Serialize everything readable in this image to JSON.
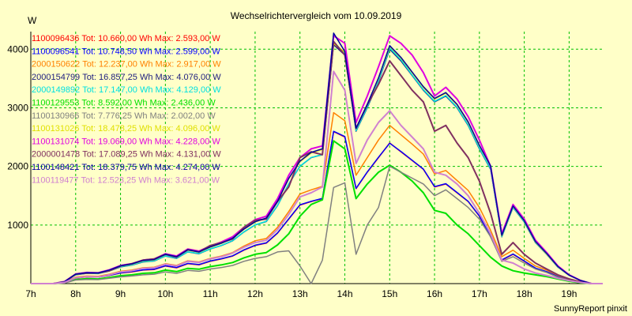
{
  "chart_data": {
    "type": "line",
    "title": "Wechselrichtervergleich vom 10.09.2019",
    "ylabel": "W",
    "footer": "SunnyReport pinxit",
    "ylim": [
      0,
      4300
    ],
    "yticks": [
      1000,
      2000,
      3000,
      4000
    ],
    "xlim": [
      7,
      19.75
    ],
    "xticks": [
      7,
      8,
      9,
      10,
      11,
      12,
      13,
      14,
      15,
      16,
      17,
      18,
      19
    ],
    "xtick_labels": [
      "7h",
      "8h",
      "9h",
      "10h",
      "11h",
      "12h",
      "13h",
      "14h",
      "15h",
      "16h",
      "17h",
      "18h",
      "19h"
    ],
    "grid": true,
    "legend_position": "top-left",
    "x": [
      7.0,
      7.25,
      7.5,
      7.75,
      8.0,
      8.25,
      8.5,
      8.75,
      9.0,
      9.25,
      9.5,
      9.75,
      10.0,
      10.25,
      10.5,
      10.75,
      11.0,
      11.25,
      11.5,
      11.75,
      12.0,
      12.25,
      12.5,
      12.75,
      13.0,
      13.25,
      13.5,
      13.75,
      14.0,
      14.25,
      14.5,
      14.75,
      15.0,
      15.25,
      15.5,
      15.75,
      16.0,
      16.25,
      16.5,
      16.75,
      17.0,
      17.25,
      17.5,
      17.75,
      18.0,
      18.25,
      18.5,
      18.75,
      19.0,
      19.25,
      19.5,
      19.75
    ],
    "series": [
      {
        "name": "1100096436",
        "tot": "Tot: 10.660,00 Wh",
        "max": "Max: 2.593,00 W",
        "color": "#ff0000",
        "width": 1.5,
        "values": [
          0,
          0,
          0,
          20,
          95,
          115,
          110,
          140,
          180,
          200,
          230,
          240,
          300,
          270,
          340,
          320,
          380,
          420,
          470,
          570,
          650,
          690,
          860,
          1100,
          1340,
          1400,
          1450,
          2593,
          2500,
          1620,
          1900,
          2150,
          2400,
          2250,
          2100,
          1950,
          1650,
          1700,
          1550,
          1400,
          1150,
          800,
          400,
          500,
          380,
          260,
          200,
          120,
          70,
          30,
          0,
          0
        ]
      },
      {
        "name": "1100096541",
        "tot": "Tot: 10.748,50 Wh",
        "max": "Max: 2.599,00 W",
        "color": "#0000ff",
        "width": 1.5,
        "values": [
          0,
          0,
          0,
          20,
          100,
          118,
          112,
          142,
          182,
          205,
          235,
          245,
          305,
          275,
          345,
          325,
          385,
          425,
          475,
          575,
          655,
          695,
          865,
          1105,
          1345,
          1405,
          1455,
          2599,
          2510,
          1625,
          1905,
          2155,
          2395,
          2255,
          2105,
          1955,
          1655,
          1705,
          1555,
          1405,
          1155,
          805,
          405,
          505,
          385,
          265,
          205,
          125,
          75,
          30,
          0,
          0
        ]
      },
      {
        "name": "2000150622",
        "tot": "Tot: 12.237,00 Wh",
        "max": "Max: 2.917,00 W",
        "color": "#ff8000",
        "width": 1.5,
        "values": [
          0,
          0,
          0,
          25,
          110,
          130,
          125,
          160,
          210,
          230,
          270,
          280,
          340,
          310,
          390,
          370,
          430,
          470,
          530,
          640,
          730,
          770,
          960,
          1230,
          1530,
          1600,
          1660,
          2917,
          2780,
          1850,
          2150,
          2450,
          2700,
          2540,
          2380,
          2210,
          1870,
          1930,
          1760,
          1590,
          1300,
          910,
          460,
          570,
          430,
          300,
          230,
          140,
          80,
          35,
          0,
          0
        ]
      },
      {
        "name": "2000154799",
        "tot": "Tot: 16.857,25 Wh",
        "max": "Max: 4.076,00 W",
        "color": "#202080",
        "width": 1.5,
        "values": [
          0,
          0,
          0,
          30,
          150,
          175,
          170,
          215,
          285,
          315,
          370,
          385,
          470,
          430,
          540,
          510,
          590,
          650,
          730,
          880,
          1000,
          1060,
          1330,
          1700,
          2000,
          2150,
          2200,
          4076,
          3900,
          2600,
          3000,
          3450,
          4000,
          3800,
          3550,
          3300,
          3100,
          3200,
          3000,
          2700,
          2300,
          1950,
          800,
          1300,
          1050,
          700,
          500,
          280,
          140,
          55,
          0,
          0
        ]
      },
      {
        "name": "2000149892",
        "tot": "Tot: 17.147,00 Wh",
        "max": "Max: 4.129,00 W",
        "color": "#00e0e0",
        "width": 1.5,
        "values": [
          0,
          0,
          0,
          30,
          152,
          178,
          172,
          218,
          288,
          318,
          373,
          388,
          473,
          433,
          543,
          513,
          593,
          653,
          733,
          883,
          1003,
          1063,
          1333,
          1703,
          2003,
          2153,
          2203,
          4129,
          3920,
          2610,
          3010,
          3460,
          4020,
          3820,
          3560,
          3310,
          3110,
          3210,
          3010,
          2710,
          2310,
          1960,
          805,
          1305,
          1055,
          705,
          505,
          285,
          145,
          55,
          0,
          0
        ]
      },
      {
        "name": "1100129553",
        "tot": "Tot: 8.592,00 Wh",
        "max": "Max: 2.436,00 W",
        "color": "#00e000",
        "width": 2,
        "values": [
          0,
          0,
          0,
          15,
          70,
          85,
          80,
          105,
          135,
          150,
          175,
          185,
          230,
          205,
          260,
          245,
          290,
          320,
          360,
          440,
          500,
          530,
          660,
          850,
          1150,
          1350,
          1430,
          2436,
          2300,
          1450,
          1700,
          1900,
          2020,
          1900,
          1750,
          1550,
          1250,
          1200,
          1000,
          850,
          650,
          450,
          300,
          220,
          180,
          150,
          120,
          80,
          40,
          15,
          0,
          0
        ]
      },
      {
        "name": "1100130966",
        "tot": "Tot: 7.776,25 Wh",
        "max": "Max: 2.002,00 W",
        "color": "#808080",
        "width": 1.5,
        "values": [
          0,
          0,
          0,
          10,
          60,
          70,
          68,
          90,
          115,
          130,
          150,
          160,
          200,
          175,
          225,
          210,
          250,
          275,
          310,
          380,
          430,
          460,
          540,
          560,
          300,
          0,
          400,
          1640,
          1720,
          500,
          1000,
          1300,
          2002,
          1900,
          1800,
          1700,
          1500,
          1600,
          1450,
          1300,
          1100,
          800,
          380,
          460,
          350,
          250,
          190,
          110,
          60,
          25,
          0,
          0
        ]
      },
      {
        "name": "1100131026",
        "tot": "Tot: 18.478,25 Wh",
        "max": "Max: 4.096,00 W",
        "color": "#e0e000",
        "width": 1.5,
        "values": [
          0,
          0,
          0,
          30,
          160,
          185,
          180,
          230,
          300,
          330,
          390,
          405,
          495,
          455,
          570,
          535,
          620,
          685,
          770,
          925,
          1050,
          1115,
          1400,
          1790,
          2080,
          2230,
          2290,
          4096,
          3950,
          2640,
          3050,
          3500,
          4050,
          3850,
          3600,
          3350,
          3150,
          3250,
          3050,
          2750,
          2350,
          2000,
          820,
          1320,
          1070,
          715,
          510,
          290,
          145,
          55,
          0,
          0
        ]
      },
      {
        "name": "1100131074",
        "tot": "Tot: 19.069,00 Wh",
        "max": "Max: 4.228,00 W",
        "color": "#e000e0",
        "width": 2,
        "values": [
          0,
          0,
          0,
          35,
          165,
          190,
          185,
          235,
          310,
          340,
          400,
          420,
          510,
          470,
          590,
          555,
          640,
          710,
          800,
          960,
          1090,
          1150,
          1450,
          1850,
          2150,
          2300,
          2350,
          4228,
          4100,
          2750,
          3200,
          3700,
          4228,
          4100,
          3900,
          3600,
          3200,
          3350,
          3150,
          2850,
          2450,
          2000,
          850,
          1350,
          1100,
          740,
          530,
          300,
          150,
          55,
          0,
          0
        ]
      },
      {
        "name": "2000001478",
        "tot": "Tot: 17.089,25 Wh",
        "max": "Max: 4.131,00 W",
        "color": "#803060",
        "width": 2,
        "values": [
          0,
          0,
          0,
          30,
          160,
          180,
          180,
          220,
          300,
          340,
          400,
          420,
          500,
          450,
          580,
          540,
          650,
          700,
          760,
          960,
          1080,
          1100,
          1400,
          1650,
          2150,
          2250,
          2200,
          4131,
          3900,
          2650,
          3050,
          3400,
          3800,
          3550,
          3300,
          3100,
          2600,
          2700,
          2400,
          2150,
          1750,
          1200,
          500,
          700,
          500,
          350,
          250,
          150,
          80,
          30,
          0,
          0
        ]
      },
      {
        "name": "1100148421",
        "tot": "Tot: 18.379,75 Wh",
        "max": "Max: 4.274,00 W",
        "color": "#0000a0",
        "width": 1.5,
        "values": [
          0,
          0,
          0,
          32,
          162,
          187,
          182,
          232,
          305,
          335,
          395,
          410,
          500,
          460,
          575,
          540,
          625,
          690,
          775,
          930,
          1055,
          1120,
          1405,
          1795,
          2090,
          2240,
          2300,
          4274,
          3960,
          2650,
          3060,
          3510,
          4060,
          3860,
          3610,
          3360,
          3160,
          3260,
          3060,
          2760,
          2360,
          2010,
          825,
          1325,
          1075,
          720,
          515,
          292,
          146,
          55,
          0,
          0
        ]
      },
      {
        "name": "1100119477",
        "tot": "Tot: 12.523,25 Wh",
        "max": "Max: 3.621,00 W",
        "color": "#d080d0",
        "width": 2,
        "values": [
          0,
          0,
          0,
          20,
          100,
          120,
          115,
          150,
          200,
          220,
          260,
          270,
          330,
          300,
          380,
          360,
          420,
          460,
          520,
          620,
          700,
          740,
          920,
          1180,
          1480,
          1550,
          1650,
          3621,
          3300,
          2050,
          2450,
          2750,
          2950,
          2700,
          2500,
          2300,
          1900,
          1850,
          1700,
          1500,
          1200,
          850,
          400,
          350,
          250,
          180,
          140,
          90,
          50,
          20,
          0,
          0
        ]
      }
    ]
  }
}
